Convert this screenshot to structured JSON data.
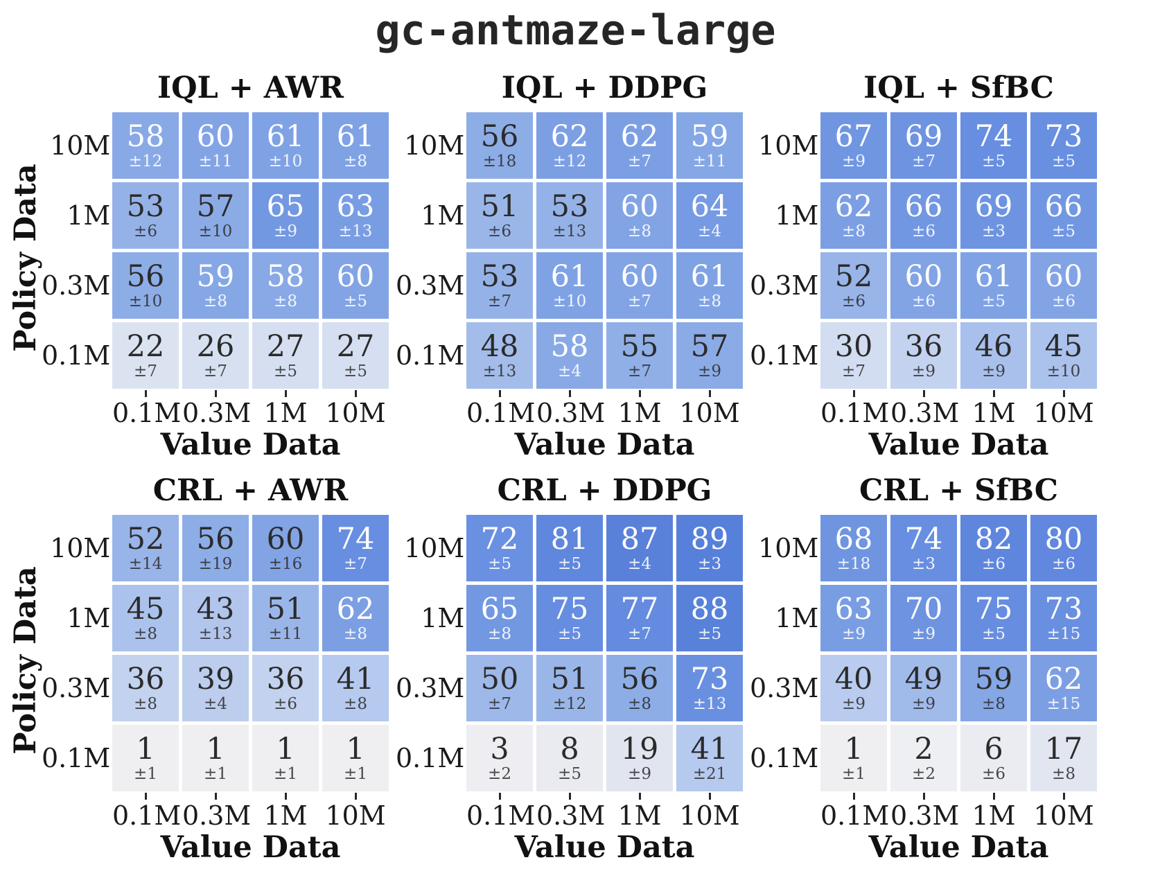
{
  "title": "gc-antmaze-large",
  "axis": {
    "x_label": "Value Data",
    "y_label": "Policy Data",
    "x_ticks": [
      "0.1M",
      "0.3M",
      "1M",
      "10M"
    ],
    "y_ticks": [
      "10M",
      "1M",
      "0.3M",
      "0.1M"
    ]
  },
  "colors": {
    "background": "#ffffff",
    "dark_text": "#2b2b2b",
    "light_text": "#ffffff",
    "tick_color": "#262626",
    "colormap_stops": [
      {
        "v": 0,
        "c": "#f0f0f2"
      },
      {
        "v": 10,
        "c": "#e8eaf1"
      },
      {
        "v": 20,
        "c": "#dfe4f0"
      },
      {
        "v": 30,
        "c": "#d2ddf1"
      },
      {
        "v": 40,
        "c": "#b9cbee"
      },
      {
        "v": 50,
        "c": "#9db8e9"
      },
      {
        "v": 58,
        "c": "#88a9e6"
      },
      {
        "v": 65,
        "c": "#7398e2"
      },
      {
        "v": 75,
        "c": "#668de0"
      },
      {
        "v": 85,
        "c": "#5b83db"
      },
      {
        "v": 100,
        "c": "#4d77d6"
      }
    ]
  },
  "chart_data": [
    {
      "type": "heatmap",
      "title": "IQL + AWR",
      "rows": [
        "10M",
        "1M",
        "0.3M",
        "0.1M"
      ],
      "cols": [
        "0.1M",
        "0.3M",
        "1M",
        "10M"
      ],
      "xlabel": "Value Data",
      "ylabel": "Policy Data",
      "vmin": 0,
      "vmax": 100,
      "white_text_min": 58,
      "values": [
        [
          58,
          60,
          61,
          61
        ],
        [
          53,
          57,
          65,
          63
        ],
        [
          56,
          59,
          58,
          60
        ],
        [
          22,
          26,
          27,
          27
        ]
      ],
      "std": [
        [
          "±12",
          "±11",
          "±10",
          "±8"
        ],
        [
          "±6",
          "±10",
          "±9",
          "±13"
        ],
        [
          "±10",
          "±8",
          "±8",
          "±5"
        ],
        [
          "±7",
          "±7",
          "±5",
          "±5"
        ]
      ]
    },
    {
      "type": "heatmap",
      "title": "IQL + DDPG",
      "rows": [
        "10M",
        "1M",
        "0.3M",
        "0.1M"
      ],
      "cols": [
        "0.1M",
        "0.3M",
        "1M",
        "10M"
      ],
      "xlabel": "Value Data",
      "ylabel": "Policy Data",
      "vmin": 0,
      "vmax": 100,
      "white_text_min": 58,
      "values": [
        [
          56,
          62,
          62,
          59
        ],
        [
          51,
          53,
          60,
          64
        ],
        [
          53,
          61,
          60,
          61
        ],
        [
          48,
          58,
          55,
          57
        ]
      ],
      "std": [
        [
          "±18",
          "±12",
          "±7",
          "±11"
        ],
        [
          "±6",
          "±13",
          "±8",
          "±4"
        ],
        [
          "±7",
          "±10",
          "±7",
          "±8"
        ],
        [
          "±13",
          "±4",
          "±7",
          "±9"
        ]
      ]
    },
    {
      "type": "heatmap",
      "title": "IQL + SfBC",
      "rows": [
        "10M",
        "1M",
        "0.3M",
        "0.1M"
      ],
      "cols": [
        "0.1M",
        "0.3M",
        "1M",
        "10M"
      ],
      "xlabel": "Value Data",
      "ylabel": "Policy Data",
      "vmin": 0,
      "vmax": 100,
      "white_text_min": 60,
      "values": [
        [
          67,
          69,
          74,
          73
        ],
        [
          62,
          66,
          69,
          66
        ],
        [
          52,
          60,
          61,
          60
        ],
        [
          30,
          36,
          46,
          45
        ]
      ],
      "std": [
        [
          "±9",
          "±7",
          "±5",
          "±5"
        ],
        [
          "±8",
          "±6",
          "±3",
          "±5"
        ],
        [
          "±6",
          "±6",
          "±5",
          "±6"
        ],
        [
          "±7",
          "±9",
          "±9",
          "±10"
        ]
      ]
    },
    {
      "type": "heatmap",
      "title": "CRL + AWR",
      "rows": [
        "10M",
        "1M",
        "0.3M",
        "0.1M"
      ],
      "cols": [
        "0.1M",
        "0.3M",
        "1M",
        "10M"
      ],
      "xlabel": "Value Data",
      "ylabel": "Policy Data",
      "vmin": 0,
      "vmax": 100,
      "white_text_min": 62,
      "values": [
        [
          52,
          56,
          60,
          74
        ],
        [
          45,
          43,
          51,
          62
        ],
        [
          36,
          39,
          36,
          41
        ],
        [
          1,
          1,
          1,
          1
        ]
      ],
      "std": [
        [
          "±14",
          "±19",
          "±16",
          "±7"
        ],
        [
          "±8",
          "±13",
          "±11",
          "±8"
        ],
        [
          "±8",
          "±4",
          "±6",
          "±8"
        ],
        [
          "±1",
          "±1",
          "±1",
          "±1"
        ]
      ]
    },
    {
      "type": "heatmap",
      "title": "CRL + DDPG",
      "rows": [
        "10M",
        "1M",
        "0.3M",
        "0.1M"
      ],
      "cols": [
        "0.1M",
        "0.3M",
        "1M",
        "10M"
      ],
      "xlabel": "Value Data",
      "ylabel": "Policy Data",
      "vmin": 0,
      "vmax": 100,
      "white_text_min": 62,
      "values": [
        [
          72,
          81,
          87,
          89
        ],
        [
          65,
          75,
          77,
          88
        ],
        [
          50,
          51,
          56,
          73
        ],
        [
          3,
          8,
          19,
          41
        ]
      ],
      "std": [
        [
          "±5",
          "±5",
          "±4",
          "±3"
        ],
        [
          "±8",
          "±5",
          "±7",
          "±5"
        ],
        [
          "±7",
          "±12",
          "±8",
          "±13"
        ],
        [
          "±2",
          "±5",
          "±9",
          "±21"
        ]
      ]
    },
    {
      "type": "heatmap",
      "title": "CRL + SfBC",
      "rows": [
        "10M",
        "1M",
        "0.3M",
        "0.1M"
      ],
      "cols": [
        "0.1M",
        "0.3M",
        "1M",
        "10M"
      ],
      "xlabel": "Value Data",
      "ylabel": "Policy Data",
      "vmin": 0,
      "vmax": 100,
      "white_text_min": 62,
      "values": [
        [
          68,
          74,
          82,
          80
        ],
        [
          63,
          70,
          75,
          73
        ],
        [
          40,
          49,
          59,
          62
        ],
        [
          1,
          2,
          6,
          17
        ]
      ],
      "std": [
        [
          "±18",
          "±3",
          "±6",
          "±6"
        ],
        [
          "±9",
          "±9",
          "±5",
          "±15"
        ],
        [
          "±9",
          "±9",
          "±8",
          "±15"
        ],
        [
          "±1",
          "±2",
          "±6",
          "±8"
        ]
      ]
    }
  ]
}
